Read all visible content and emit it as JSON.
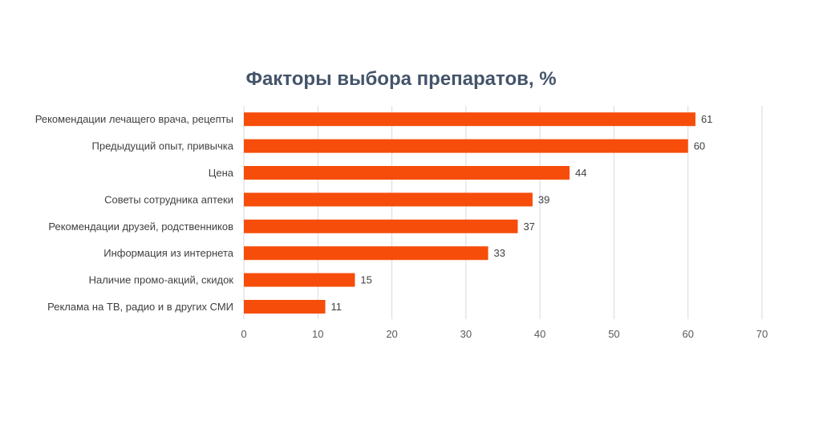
{
  "chart_data": {
    "type": "bar",
    "orientation": "horizontal",
    "title": "Факторы выбора препаратов, %",
    "categories": [
      "Рекомендации лечащего врача, рецепты",
      "Предыдущий опыт, привычка",
      "Цена",
      "Советы сотрудника аптеки",
      "Рекомендации друзей, родственников",
      "Информация из интернета",
      "Наличие промо-акций, скидок",
      "Реклама на ТВ, радио и в других СМИ"
    ],
    "values": [
      61,
      60,
      44,
      39,
      37,
      33,
      15,
      11
    ],
    "xlim": [
      0,
      70
    ],
    "xticks": [
      "0",
      "10",
      "20",
      "30",
      "40",
      "50",
      "60",
      "70"
    ],
    "grid": true,
    "legend": "none",
    "colors": {
      "bar": "#f64d0a",
      "title": "#44546a",
      "grid": "#d9d9d9",
      "text": "#404040"
    }
  }
}
